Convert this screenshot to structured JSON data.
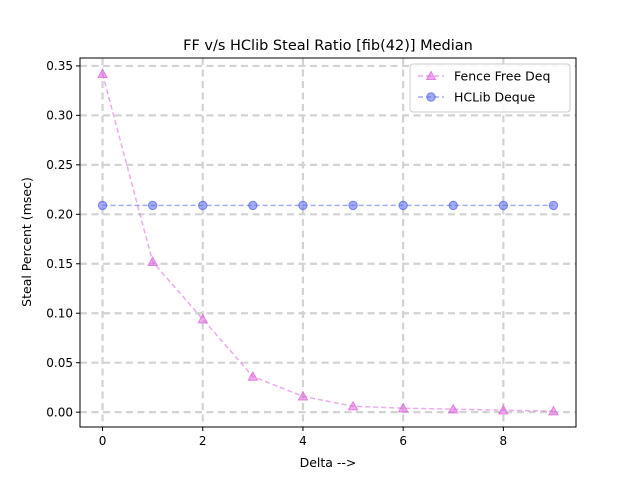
{
  "chart_data": {
    "type": "line",
    "title": "FF v/s HClib Steal Ratio [fib(42)] Median",
    "xlabel": "Delta -->",
    "ylabel": "Steal Percent (msec)",
    "xlim": [
      -0.45,
      9.45
    ],
    "ylim": [
      -0.015,
      0.358
    ],
    "x": [
      0,
      1,
      2,
      3,
      4,
      5,
      6,
      7,
      8,
      9
    ],
    "xticks": [
      0,
      2,
      4,
      6,
      8
    ],
    "xtick_labels": [
      "0",
      "2",
      "4",
      "6",
      "8"
    ],
    "yticks": [
      0.0,
      0.05,
      0.1,
      0.15,
      0.2,
      0.25,
      0.3,
      0.35
    ],
    "ytick_labels": [
      "0.00",
      "0.05",
      "0.10",
      "0.15",
      "0.20",
      "0.25",
      "0.30",
      "0.35"
    ],
    "grid": true,
    "legend_position": "top-right",
    "series": [
      {
        "name": "Fence Free Deq",
        "color": "#dd66dd",
        "marker": "triangle",
        "linestyle": "dashed",
        "values": [
          0.342,
          0.152,
          0.094,
          0.036,
          0.016,
          0.006,
          0.004,
          0.003,
          0.002,
          0.001
        ]
      },
      {
        "name": "HCLib Deque",
        "color": "#5566ee",
        "marker": "circle",
        "linestyle": "dashed",
        "values": [
          0.209,
          0.209,
          0.209,
          0.209,
          0.209,
          0.209,
          0.209,
          0.209,
          0.209,
          0.209
        ]
      }
    ]
  }
}
